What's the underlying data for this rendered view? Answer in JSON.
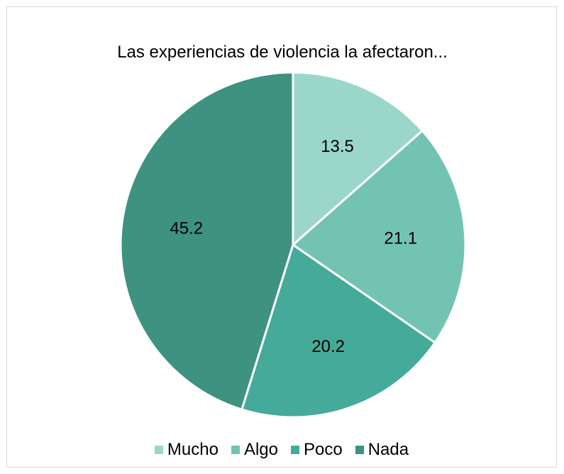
{
  "chart_data": {
    "type": "pie",
    "title": "Las experiencias de violencia la afectaron...",
    "categories": [
      "Mucho",
      "Algo",
      "Poco",
      "Nada"
    ],
    "values": [
      13.5,
      21.1,
      20.2,
      45.2
    ],
    "colors": [
      "#9bd6cb",
      "#73c3b3",
      "#45aa99",
      "#3d9281"
    ],
    "data_labels": [
      "13.5",
      "21.1",
      "20.2",
      "45.2"
    ],
    "legend_position": "bottom",
    "start_angle": "top",
    "direction": "clockwise"
  }
}
